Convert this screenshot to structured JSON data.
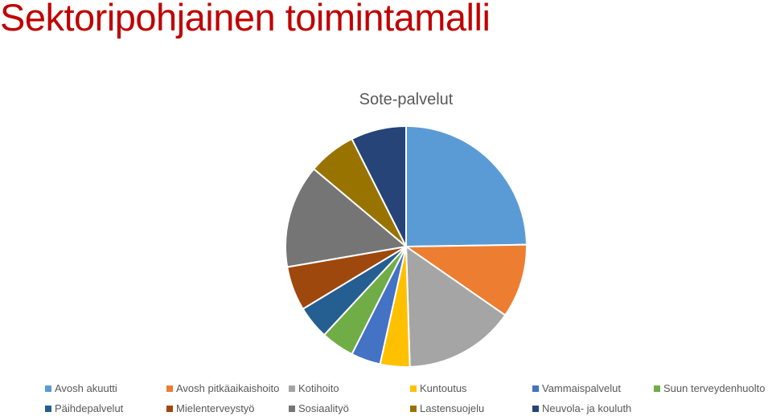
{
  "slide": {
    "title": "Sektoripohjainen toimintamalli"
  },
  "chart_data": {
    "type": "pie",
    "title": "Sote-palvelut",
    "legend_position": "bottom",
    "start_angle_deg": 0,
    "direction": "clockwise",
    "slices": [
      {
        "label": "Avosh akuutti",
        "value": 25,
        "color": "#5b9bd5"
      },
      {
        "label": "Avosh pitkäaikaishoito",
        "value": 10,
        "color": "#ed7d31"
      },
      {
        "label": "Kotihoito",
        "value": 15,
        "color": "#a5a5a5"
      },
      {
        "label": "Kuntoutus",
        "value": 4,
        "color": "#ffc000"
      },
      {
        "label": "Vammaispalvelut",
        "value": 4,
        "color": "#4472c4"
      },
      {
        "label": "Suun terveydenhuolto",
        "value": 4.5,
        "color": "#70ad47"
      },
      {
        "label": "Päihdepalvelut",
        "value": 4.5,
        "color": "#255e91"
      },
      {
        "label": "Mielenterveystyö",
        "value": 6,
        "color": "#9e480e"
      },
      {
        "label": "Sosiaalityö",
        "value": 14,
        "color": "#757575"
      },
      {
        "label": "Lastensuojelu",
        "value": 6.5,
        "color": "#997300"
      },
      {
        "label": "Neuvola- ja kouluth",
        "value": 7.5,
        "color": "#264478"
      }
    ]
  }
}
